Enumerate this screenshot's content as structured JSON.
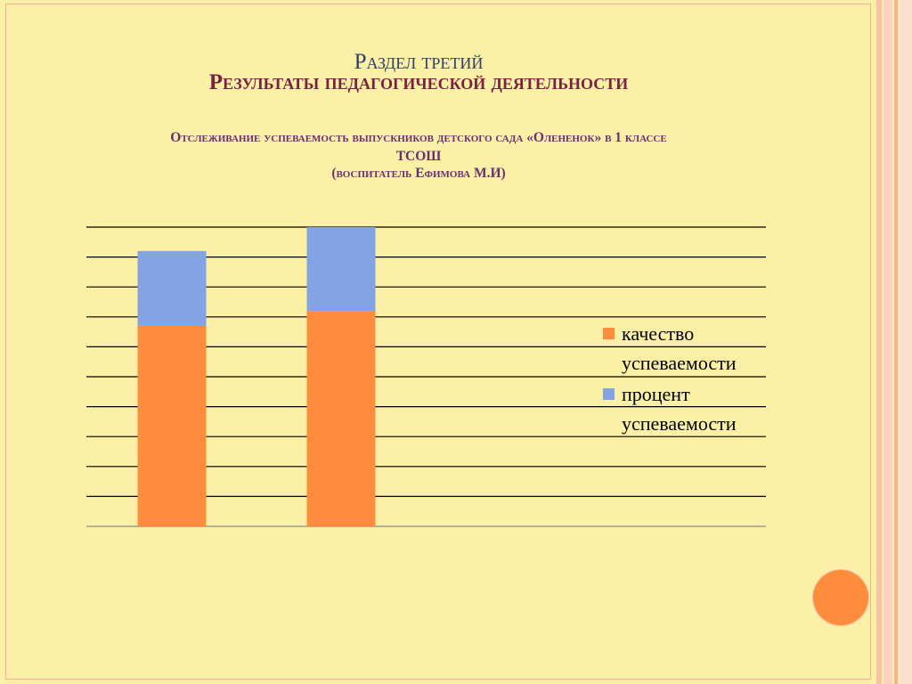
{
  "slide": {
    "section": "Раздел третий",
    "title": "Результаты педагогической деятельности",
    "subtitle_line1": "Отслеживание успеваемость выпускников детского сада «Олененок» в 1 классе",
    "subtitle_line2": "ТСОШ",
    "subtitle_line3": "(воспитатель Ефимова М.И)"
  },
  "colors": {
    "background": "#fcefa6",
    "quality": "#fd8d3c",
    "percent": "#84a3e2",
    "accent_circle": "#fd8d3c",
    "section_text": "#2b4166",
    "title_text": "#7a2140",
    "subtitle_text": "#6a2f73"
  },
  "chart_data": {
    "type": "bar",
    "stacked": true,
    "categories": [
      "",
      ""
    ],
    "series": [
      {
        "name": "качество успеваемости",
        "color": "#fd8d3c",
        "values": [
          67,
          72
        ]
      },
      {
        "name": "процент успеваемости",
        "color": "#84a3e2",
        "values": [
          25,
          28
        ]
      }
    ],
    "ylim": [
      0,
      100
    ],
    "gridlines": 10,
    "grid": true,
    "legend": "right",
    "legend_lines": [
      [
        "качество",
        "успеваемости"
      ],
      [
        "процент",
        "успеваемости"
      ]
    ]
  }
}
